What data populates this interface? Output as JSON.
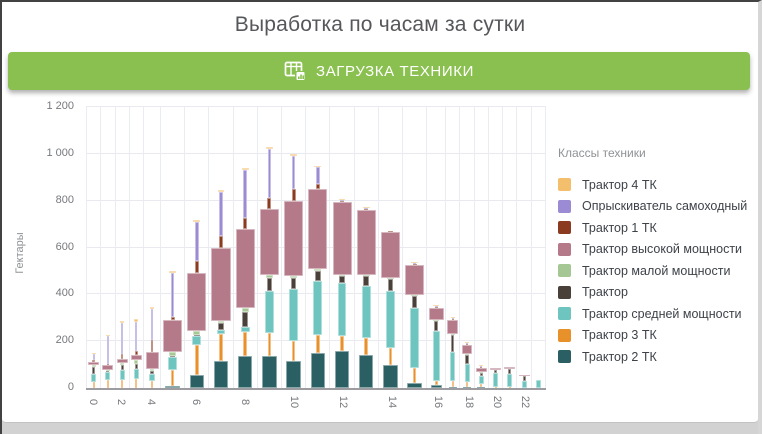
{
  "title": "Выработка по часам за сутки",
  "banner": {
    "label": "ЗАГРУЗКА ТЕХНИКИ",
    "color": "#8ac04f",
    "icon": "table-chart-icon"
  },
  "chart_data": {
    "type": "bar",
    "stacked": true,
    "variable_width": true,
    "ylabel": "Гектары",
    "ylim": [
      0,
      1200
    ],
    "ytick_values": [
      0,
      200,
      400,
      600,
      800,
      1000,
      1200
    ],
    "ytick_labels": [
      "0",
      "200",
      "400",
      "600",
      "800",
      "1 000",
      "1 200"
    ],
    "x_hours": [
      0,
      1,
      2,
      3,
      4,
      5,
      6,
      7,
      8,
      9,
      10,
      11,
      12,
      13,
      14,
      15,
      16,
      17,
      18,
      19,
      20,
      21,
      22,
      23
    ],
    "x_labeled_every": 2,
    "grid": true,
    "legend_title": "Классы техники",
    "legend_position": "right",
    "series": [
      {
        "name": "Трактор 4 ТК",
        "color": "#f3bf6d",
        "values": [
          5,
          4,
          7,
          11,
          10,
          8,
          10,
          9,
          10,
          9,
          7,
          4,
          2,
          1,
          0,
          2,
          2,
          1,
          1,
          1,
          0,
          0,
          0,
          0
        ]
      },
      {
        "name": "Опрыскиватель самоходный",
        "color": "#9b8bd4",
        "values": [
          25,
          121,
          136,
          125,
          130,
          190,
          165,
          186,
          202,
          207,
          143,
          72,
          7,
          2,
          0,
          3,
          2,
          2,
          2,
          2,
          0,
          0,
          0,
          0
        ]
      },
      {
        "name": "Трактор 1 ТК",
        "color": "#8a3b20",
        "values": [
          8,
          3,
          21,
          19,
          55,
          10,
          50,
          50,
          50,
          50,
          50,
          21,
          4,
          3,
          2,
          3,
          2,
          2,
          2,
          2,
          0,
          0,
          0,
          0
        ]
      },
      {
        "name": "Трактор высокой мощности",
        "color": "#b57a8a",
        "values": [
          14,
          22,
          15,
          21,
          70,
          140,
          250,
          314,
          338,
          283,
          322,
          343,
          310,
          277,
          200,
          130,
          50,
          60,
          40,
          18,
          8,
          10,
          4,
          0
        ]
      },
      {
        "name": "Трактор малой мощности",
        "color": "#a5c793",
        "values": [
          7,
          4,
          10,
          15,
          8,
          14,
          15,
          8,
          14,
          10,
          7,
          7,
          5,
          4,
          3,
          3,
          3,
          2,
          2,
          2,
          0,
          0,
          0,
          0
        ]
      },
      {
        "name": "Трактор",
        "color": "#49403a",
        "values": [
          29,
          3,
          22,
          21,
          12,
          5,
          5,
          28,
          64,
          57,
          50,
          43,
          28,
          41,
          50,
          50,
          43,
          70,
          36,
          14,
          15,
          20,
          25,
          0
        ]
      },
      {
        "name": "Трактор средней мощности",
        "color": "#6ec4be",
        "values": [
          35,
          35,
          40,
          43,
          32,
          55,
          40,
          21,
          21,
          178,
          221,
          229,
          229,
          223,
          245,
          257,
          214,
          124,
          79,
          30,
          58,
          55,
          28,
          35
        ]
      },
      {
        "name": "Трактор 3 ТК",
        "color": "#e8912b",
        "values": [
          26,
          33,
          36,
          40,
          30,
          68,
          128,
          115,
          106,
          100,
          85,
          78,
          64,
          71,
          69,
          65,
          17,
          26,
          21,
          15,
          5,
          3,
          0,
          0
        ]
      },
      {
        "name": "Трактор 2 ТК",
        "color": "#2a5f63",
        "values": [
          0,
          0,
          0,
          0,
          0,
          10,
          55,
          114,
          135,
          136,
          115,
          150,
          157,
          143,
          100,
          21,
          12,
          5,
          2,
          2,
          0,
          0,
          0,
          0
        ]
      }
    ],
    "stack_order_bottom_to_top": [
      "Трактор 2 ТК",
      "Трактор 3 ТК",
      "Трактор средней мощности",
      "Трактор",
      "Трактор малой мощности",
      "Трактор высокой мощности",
      "Трактор 1 ТК",
      "Опрыскиватель самоходный",
      "Трактор 4 ТК"
    ],
    "series_width_fraction": {
      "Трактор 2 ТК": 0.62,
      "Трактор 3 ТК": 0.15,
      "Трактор средней мощности": 0.38,
      "Трактор": 0.24,
      "Трактор малой мощности": 0.3,
      "Трактор высокой мощности": 0.82,
      "Трактор 1 ТК": 0.18,
      "Опрыскиватель самоходный": 0.16,
      "Трактор 4 ТК": 0.3
    },
    "column_flex_weights": [
      1,
      1,
      1,
      1,
      1.2,
      1.75,
      1.75,
      1.75,
      1.75,
      1.75,
      1.75,
      1.75,
      1.75,
      1.75,
      1.75,
      1.75,
      1.35,
      1,
      1,
      1,
      1,
      1,
      1,
      1
    ]
  }
}
